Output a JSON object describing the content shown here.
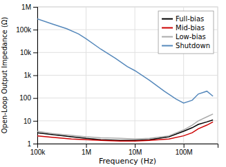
{
  "chart_data": {
    "type": "line",
    "xlabel": "Frequency (Hz)",
    "ylabel": "Open-Loop Output Impedance (Ω)",
    "log": true,
    "grid": true,
    "legend": "upper right",
    "xlim": [
      100000,
      500000000
    ],
    "ylim": [
      1,
      1000000
    ],
    "xticks": [
      {
        "value": 100000,
        "label": "100k"
      },
      {
        "value": 1000000,
        "label": "1M"
      },
      {
        "value": 10000000,
        "label": "10M"
      },
      {
        "value": 100000000,
        "label": "100M"
      }
    ],
    "yticks": [
      1,
      10,
      100,
      {
        "value": 1000,
        "label": "1k"
      },
      {
        "value": 10000,
        "label": "10k"
      },
      {
        "value": 100000,
        "label": "100k"
      },
      {
        "value": 1000000,
        "label": "1M"
      }
    ],
    "series": [
      {
        "name": "Full-bias",
        "color": "#000000",
        "x": [
          100000,
          200000,
          500000,
          1000000,
          2000000,
          5000000,
          10000000,
          20000000,
          50000000,
          100000000,
          150000000,
          200000000,
          300000000,
          400000000
        ],
        "values": [
          3.0,
          2.5,
          2.0,
          1.7,
          1.5,
          1.4,
          1.4,
          1.5,
          2.0,
          3.5,
          5.0,
          7.0,
          9.0,
          11.0
        ]
      },
      {
        "name": "Mid-bias",
        "color": "#cc0000",
        "x": [
          100000,
          200000,
          500000,
          1000000,
          2000000,
          5000000,
          10000000,
          20000000,
          50000000,
          100000000,
          150000000,
          200000000,
          300000000,
          400000000
        ],
        "values": [
          2.2,
          1.9,
          1.6,
          1.5,
          1.4,
          1.3,
          1.3,
          1.4,
          1.6,
          2.2,
          3.0,
          4.5,
          6.5,
          9.0
        ]
      },
      {
        "name": "Low-bias",
        "color": "#aaaaaa",
        "x": [
          100000,
          200000,
          500000,
          1000000,
          2000000,
          5000000,
          10000000,
          20000000,
          50000000,
          100000000,
          150000000,
          200000000,
          300000000,
          400000000
        ],
        "values": [
          3.5,
          2.8,
          2.3,
          2.0,
          1.8,
          1.7,
          1.6,
          1.7,
          2.2,
          4.0,
          6.5,
          10.0,
          15.0,
          20.0
        ]
      },
      {
        "name": "Shutdown",
        "color": "#5588bb",
        "x": [
          100000,
          200000,
          400000,
          700000,
          1000000,
          2000000,
          4000000,
          7000000,
          10000000,
          20000000,
          40000000,
          70000000,
          100000000,
          150000000,
          200000000,
          300000000,
          400000000
        ],
        "values": [
          300000,
          180000,
          110000,
          65000,
          40000,
          14000,
          5500,
          2400,
          1600,
          600,
          200,
          90,
          60,
          80,
          150,
          200,
          120
        ]
      }
    ]
  }
}
